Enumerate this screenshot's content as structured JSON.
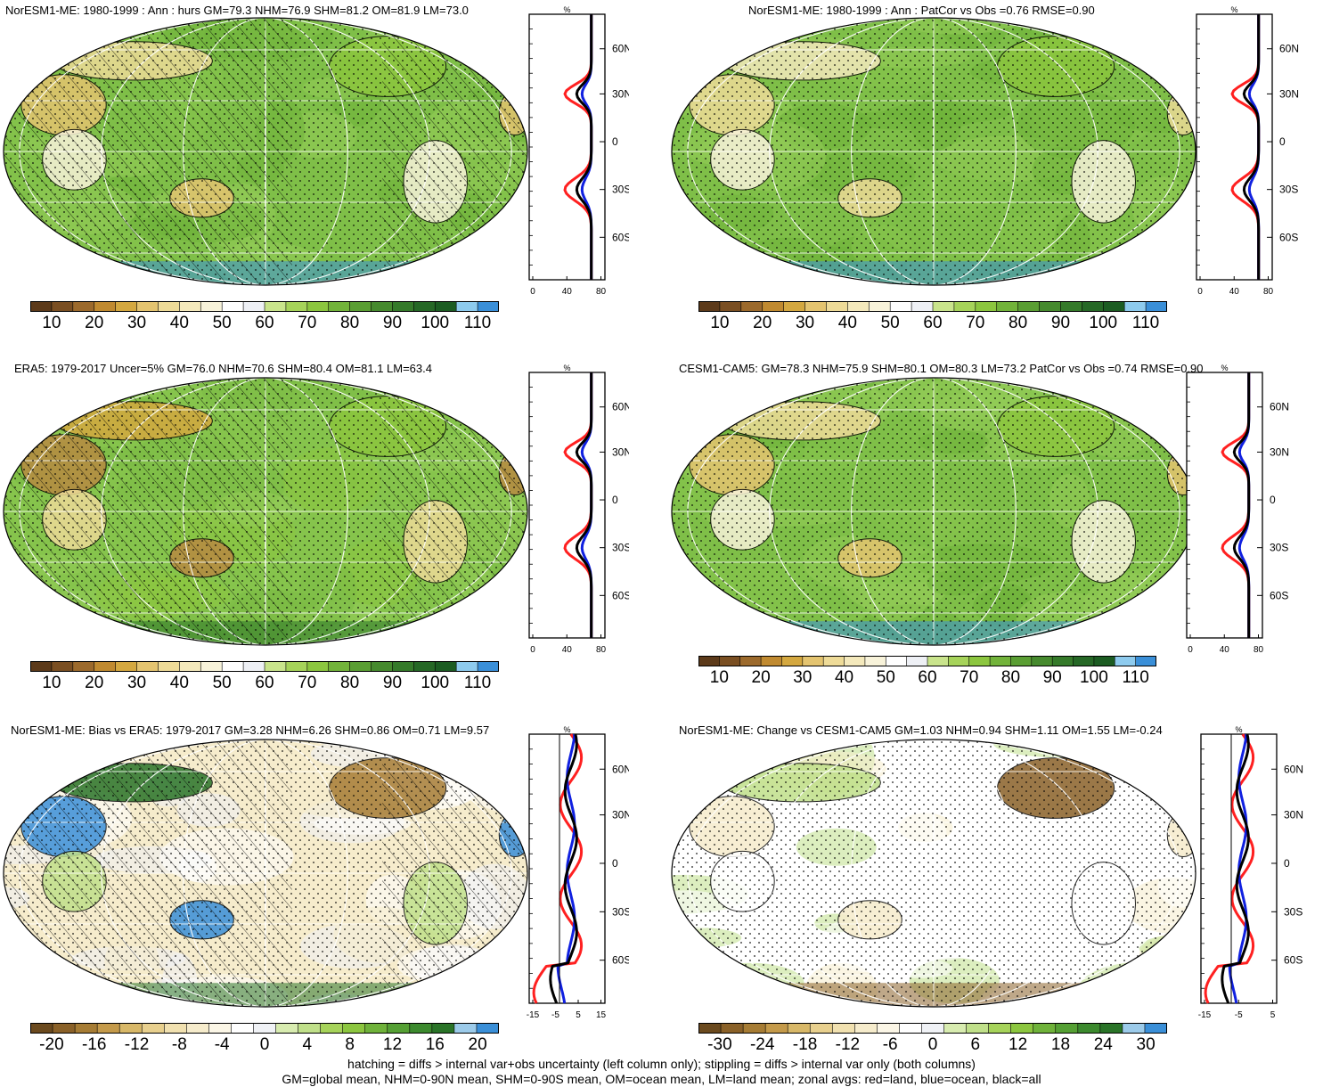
{
  "panels": [
    {
      "id": "p1",
      "title": "NorESM1-ME: 1980-1999 : Ann : hurs GM=79.3 NHM=76.9 SHM=81.2 OM=81.9 LM=73.0",
      "colorbar_labels": [
        "10",
        "20",
        "30",
        "40",
        "50",
        "60",
        "70",
        "80",
        "90",
        "100",
        "110"
      ],
      "zonal_unit": "%",
      "zonal_lat_labels": [
        "60N",
        "30N",
        "0",
        "30S",
        "60S"
      ],
      "zonal_x_labels": [
        "0",
        "40",
        "80"
      ],
      "hatching": true
    },
    {
      "id": "p2",
      "title": "NorESM1-ME: 1980-1999 : Ann : PatCor vs Obs =0.76 RMSE=0.90",
      "colorbar_labels": [
        "10",
        "20",
        "30",
        "40",
        "50",
        "60",
        "70",
        "80",
        "90",
        "100",
        "110"
      ],
      "zonal_unit": "%",
      "zonal_lat_labels": [
        "60N",
        "30N",
        "0",
        "30S",
        "60S"
      ],
      "zonal_x_labels": [
        "0",
        "40",
        "80"
      ],
      "hatching": false
    },
    {
      "id": "p3",
      "title": "ERA5: 1979-2017 Uncer=5% GM=76.0 NHM=70.6 SHM=80.4 OM=81.1 LM=63.4",
      "colorbar_labels": [
        "10",
        "20",
        "30",
        "40",
        "50",
        "60",
        "70",
        "80",
        "90",
        "100",
        "110"
      ],
      "zonal_unit": "%",
      "zonal_lat_labels": [
        "60N",
        "30N",
        "0",
        "30S",
        "60S"
      ],
      "zonal_x_labels": [
        "0",
        "40",
        "80"
      ],
      "hatching": true
    },
    {
      "id": "p4",
      "title": "CESM1-CAM5: GM=78.3 NHM=75.9 SHM=80.1 OM=80.3 LM=73.2 PatCor vs Obs =0.74 RMSE=0.90",
      "colorbar_labels": [
        "10",
        "20",
        "30",
        "40",
        "50",
        "60",
        "70",
        "80",
        "90",
        "100",
        "110"
      ],
      "zonal_unit": "%",
      "zonal_lat_labels": [
        "60N",
        "30N",
        "0",
        "30S",
        "60S"
      ],
      "zonal_x_labels": [
        "0",
        "40",
        "80"
      ],
      "hatching": false
    },
    {
      "id": "p5",
      "title": "NorESM1-ME: Bias vs ERA5: 1979-2017 GM=3.28 NHM=6.26 SHM=0.86 OM=0.71 LM=9.57",
      "colorbar_labels": [
        "-20",
        "-16",
        "-12",
        "-8",
        "-4",
        "0",
        "4",
        "8",
        "12",
        "16",
        "20"
      ],
      "zonal_unit": "%",
      "zonal_lat_labels": [
        "60N",
        "30N",
        "0",
        "30S",
        "60S"
      ],
      "zonal_x_labels": [
        "-15",
        "-5",
        "5",
        "15"
      ],
      "hatching": true
    },
    {
      "id": "p6",
      "title": "NorESM1-ME: Change vs CESM1-CAM5 GM=1.03 NHM=0.94 SHM=1.11 OM=1.55 LM=-0.24",
      "colorbar_labels": [
        "-30",
        "-24",
        "-18",
        "-12",
        "-6",
        "0",
        "6",
        "12",
        "18",
        "24",
        "30"
      ],
      "zonal_unit": "%",
      "zonal_lat_labels": [
        "60N",
        "30N",
        "0",
        "30S",
        "60S"
      ],
      "zonal_x_labels": [
        "-15",
        "-5",
        "5"
      ],
      "hatching": false
    }
  ],
  "colors": {
    "abs_scale": [
      "#5c3a1a",
      "#7a4f22",
      "#9c6a2c",
      "#c08a30",
      "#d4a840",
      "#e4c470",
      "#eedb98",
      "#f4e9bc",
      "#f8f3da",
      "#ffffff",
      "#eef0f5",
      "#c9e48c",
      "#a6d35a",
      "#8cc63f",
      "#72b33a",
      "#5a9e33",
      "#468a2e",
      "#357a2a",
      "#266826",
      "#1c5c22",
      "#8ecbee",
      "#3a8fd8"
    ],
    "diff_scale": [
      "#6b4a1e",
      "#8a6128",
      "#a67c34",
      "#c49a4a",
      "#d8b868",
      "#e8d08e",
      "#f1e1b0",
      "#f6eccc",
      "#fbf6e6",
      "#ffffff",
      "#f0f2f6",
      "#d8ecb0",
      "#c0e08a",
      "#a6d35a",
      "#8cc63f",
      "#6fb23a",
      "#55a034",
      "#3c8a2e",
      "#2a7428",
      "#9ccbea",
      "#3a8fd8"
    ],
    "land_line": "#ff2020",
    "ocean_line": "#1020e0",
    "all_line": "#000000"
  },
  "footer": {
    "line1": "hatching = diffs > internal var+obs uncertainty (left column only); stippling = diffs > internal var only (both columns)",
    "line2": "GM=global mean, NHM=0-90N mean, SHM=0-90S mean, OM=ocean mean, LM=land mean; zonal avgs: red=land, blue=ocean, black=all"
  }
}
